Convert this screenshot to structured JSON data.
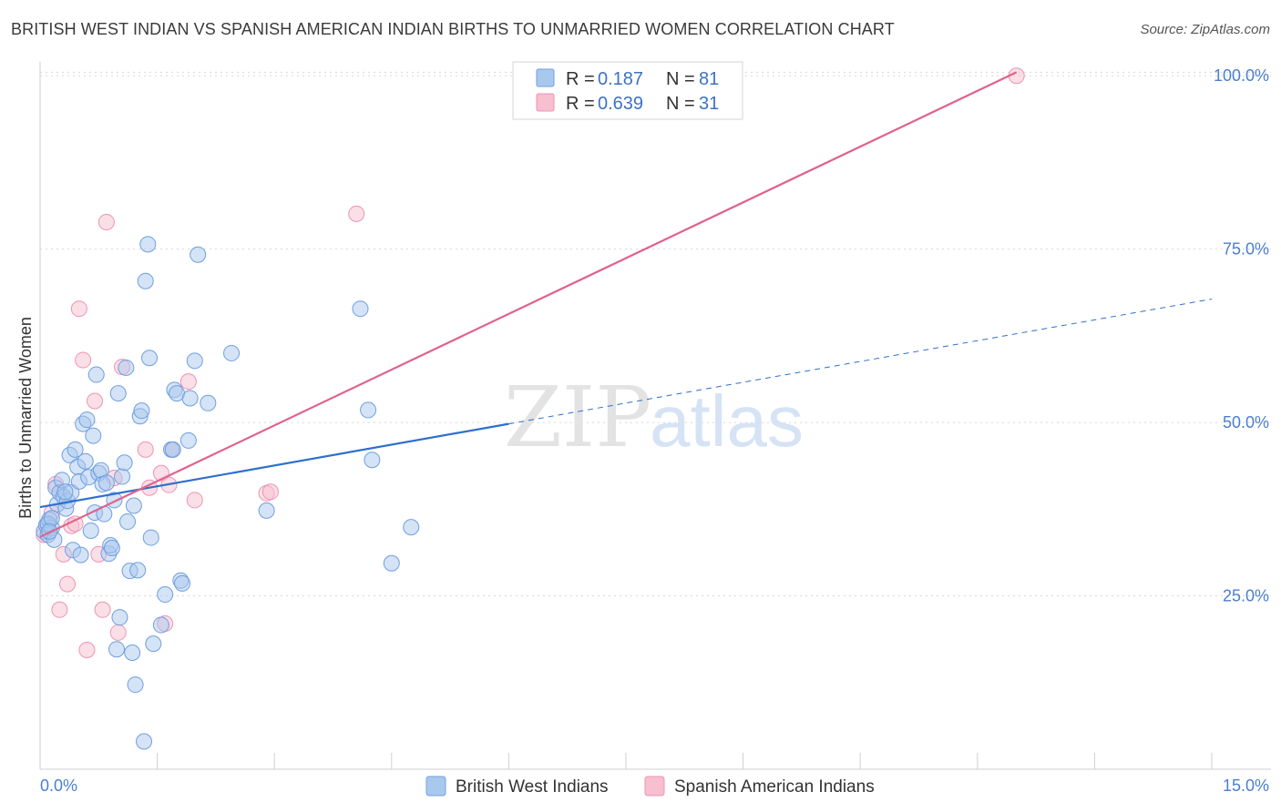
{
  "header": {
    "title": "BRITISH WEST INDIAN VS SPANISH AMERICAN INDIAN BIRTHS TO UNMARRIED WOMEN CORRELATION CHART",
    "source": "Source: ZipAtlas.com"
  },
  "watermark": {
    "zip": "ZIP",
    "atlas": "atlas"
  },
  "colors": {
    "blue_fill": "#a9c8ee",
    "blue_stroke": "#6f9fe0",
    "blue_line": "#2f6fcc",
    "pink_fill": "#f7bfd0",
    "pink_stroke": "#ec94b2",
    "pink_line": "#e0628e",
    "tick_blue": "#4a7fd0",
    "grid": "#d8d8d8"
  },
  "legend": {
    "r_label": "R =",
    "n_label": "N =",
    "series": [
      {
        "r": "0.187",
        "n": "81"
      },
      {
        "r": "0.639",
        "n": "31"
      }
    ]
  },
  "chart_data": {
    "type": "scatter",
    "title": "BRITISH WEST INDIAN VS SPANISH AMERICAN INDIAN BIRTHS TO UNMARRIED WOMEN CORRELATION CHART",
    "xlabel": "",
    "ylabel": "Births to Unmarried Women",
    "xlim": [
      0,
      15
    ],
    "ylim": [
      0,
      102
    ],
    "x_tick_labels": [
      "0.0%",
      "15.0%"
    ],
    "y_ticks": [
      25,
      50,
      75,
      100
    ],
    "y_tick_labels": [
      "25.0%",
      "50.0%",
      "75.0%",
      "100.0%"
    ],
    "grid": true,
    "legend_position": "top-center",
    "series": [
      {
        "name": "British West Indians",
        "r": 0.187,
        "n": 81,
        "trend": {
          "x0": 0.0,
          "y0": 37.8,
          "x1": 6.0,
          "y1": 49.8,
          "dashed_to_x": 15.0,
          "dashed_to_y": 67.8
        },
        "points": [
          [
            0.05,
            34.3
          ],
          [
            0.08,
            35.2
          ],
          [
            0.1,
            33.8
          ],
          [
            0.12,
            36.0
          ],
          [
            0.15,
            34.8
          ],
          [
            0.18,
            33.1
          ],
          [
            0.2,
            40.6
          ],
          [
            0.22,
            38.2
          ],
          [
            0.25,
            39.9
          ],
          [
            0.28,
            41.7
          ],
          [
            0.3,
            39.3
          ],
          [
            0.33,
            37.6
          ],
          [
            0.35,
            38.7
          ],
          [
            0.38,
            45.3
          ],
          [
            0.4,
            39.9
          ],
          [
            0.42,
            31.6
          ],
          [
            0.45,
            46.1
          ],
          [
            0.48,
            43.6
          ],
          [
            0.5,
            41.5
          ],
          [
            0.52,
            30.9
          ],
          [
            0.55,
            49.8
          ],
          [
            0.58,
            44.4
          ],
          [
            0.6,
            50.4
          ],
          [
            0.62,
            42.1
          ],
          [
            0.65,
            34.4
          ],
          [
            0.68,
            48.1
          ],
          [
            0.7,
            37.0
          ],
          [
            0.72,
            56.9
          ],
          [
            0.75,
            42.7
          ],
          [
            0.78,
            43.1
          ],
          [
            0.8,
            41.1
          ],
          [
            0.82,
            36.8
          ],
          [
            0.85,
            41.3
          ],
          [
            0.88,
            31.1
          ],
          [
            0.9,
            32.3
          ],
          [
            0.92,
            31.9
          ],
          [
            0.95,
            38.8
          ],
          [
            0.98,
            17.3
          ],
          [
            1.0,
            54.2
          ],
          [
            1.02,
            21.9
          ],
          [
            1.05,
            42.2
          ],
          [
            1.08,
            44.2
          ],
          [
            1.1,
            57.9
          ],
          [
            1.12,
            35.7
          ],
          [
            1.15,
            28.6
          ],
          [
            1.18,
            16.8
          ],
          [
            1.2,
            38.0
          ],
          [
            1.22,
            12.2
          ],
          [
            1.25,
            28.7
          ],
          [
            1.28,
            50.9
          ],
          [
            1.3,
            51.7
          ],
          [
            1.35,
            70.4
          ],
          [
            1.38,
            75.7
          ],
          [
            1.4,
            59.3
          ],
          [
            1.42,
            33.4
          ],
          [
            1.45,
            18.1
          ],
          [
            1.55,
            20.8
          ],
          [
            1.6,
            25.2
          ],
          [
            1.68,
            46.1
          ],
          [
            1.7,
            46.1
          ],
          [
            1.72,
            54.7
          ],
          [
            1.75,
            54.2
          ],
          [
            1.8,
            27.2
          ],
          [
            1.82,
            26.8
          ],
          [
            1.9,
            47.4
          ],
          [
            1.92,
            53.5
          ],
          [
            1.98,
            58.9
          ],
          [
            2.02,
            74.2
          ],
          [
            2.15,
            52.8
          ],
          [
            2.45,
            60.0
          ],
          [
            2.9,
            37.3
          ],
          [
            4.1,
            66.4
          ],
          [
            4.2,
            51.8
          ],
          [
            4.25,
            44.6
          ],
          [
            4.5,
            29.7
          ],
          [
            4.75,
            34.9
          ],
          [
            0.1,
            35.4
          ],
          [
            0.15,
            36.2
          ],
          [
            0.32,
            40.0
          ],
          [
            1.33,
            4.0
          ],
          [
            0.12,
            34.3
          ]
        ]
      },
      {
        "name": "Spanish American Indians",
        "r": 0.639,
        "n": 31,
        "trend": {
          "x0": 0.0,
          "y0": 33.5,
          "x1": 12.5,
          "y1": 100.5
        },
        "points": [
          [
            0.05,
            33.8
          ],
          [
            0.1,
            35.3
          ],
          [
            0.15,
            37.0
          ],
          [
            0.2,
            41.1
          ],
          [
            0.25,
            23.0
          ],
          [
            0.3,
            31.0
          ],
          [
            0.35,
            26.7
          ],
          [
            0.4,
            35.1
          ],
          [
            0.45,
            35.4
          ],
          [
            0.5,
            66.4
          ],
          [
            0.55,
            59.0
          ],
          [
            0.6,
            17.2
          ],
          [
            0.7,
            53.1
          ],
          [
            0.75,
            31.0
          ],
          [
            0.8,
            23.0
          ],
          [
            0.85,
            78.9
          ],
          [
            0.95,
            42.0
          ],
          [
            1.0,
            19.7
          ],
          [
            1.05,
            58.0
          ],
          [
            1.35,
            46.1
          ],
          [
            1.4,
            40.6
          ],
          [
            1.55,
            42.7
          ],
          [
            1.6,
            21.0
          ],
          [
            1.65,
            41.0
          ],
          [
            1.7,
            46.1
          ],
          [
            1.9,
            55.9
          ],
          [
            1.98,
            38.8
          ],
          [
            2.9,
            39.8
          ],
          [
            2.95,
            40.0
          ],
          [
            4.05,
            80.1
          ],
          [
            12.5,
            100.0
          ]
        ]
      }
    ]
  }
}
